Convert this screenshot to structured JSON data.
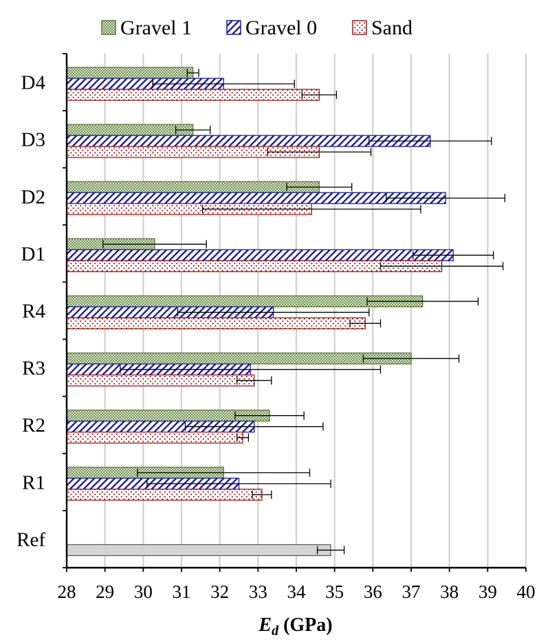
{
  "chart_data": {
    "type": "bar",
    "orientation": "horizontal",
    "xlabel_main": "E",
    "xlabel_sub": "d",
    "xlabel_unit": " (GPa)",
    "xlim": [
      28,
      40
    ],
    "xticks": [
      "28",
      "29",
      "30",
      "31",
      "32",
      "33",
      "34",
      "35",
      "36",
      "37",
      "38",
      "39",
      "40"
    ],
    "grid": "vertical",
    "legend_position": "top",
    "categories": [
      "D4",
      "D3",
      "D2",
      "D1",
      "R4",
      "R3",
      "R2",
      "R1",
      "Ref"
    ],
    "series": [
      {
        "name": "Gravel 1",
        "color": "#5a7a3a",
        "fill": "#c5d6b2",
        "pattern": "checker",
        "values": [
          31.3,
          31.3,
          34.6,
          30.3,
          37.3,
          37.0,
          33.3,
          32.1,
          null
        ],
        "errors": [
          0.15,
          0.45,
          0.85,
          1.35,
          1.45,
          1.25,
          0.9,
          2.25,
          null
        ]
      },
      {
        "name": "Gravel 0",
        "color": "#1a1aa0",
        "fill": "#ffffff",
        "pattern": "diagonal",
        "values": [
          32.1,
          37.5,
          37.9,
          38.1,
          33.4,
          32.8,
          32.9,
          32.5,
          null
        ],
        "errors": [
          1.85,
          1.6,
          1.55,
          1.05,
          2.5,
          3.4,
          1.8,
          2.4,
          null
        ]
      },
      {
        "name": "Sand",
        "color": "#a01818",
        "fill": "#ffffff",
        "pattern": "dots",
        "values": [
          34.6,
          34.6,
          34.4,
          37.8,
          35.8,
          32.9,
          32.6,
          33.1,
          null
        ],
        "errors": [
          0.45,
          1.35,
          2.85,
          1.6,
          0.4,
          0.45,
          0.15,
          0.25,
          null
        ]
      }
    ],
    "reference": {
      "category": "Ref",
      "value": 34.9,
      "error": 0.35,
      "fill": "#d4d4d4",
      "color": "#555555"
    }
  }
}
